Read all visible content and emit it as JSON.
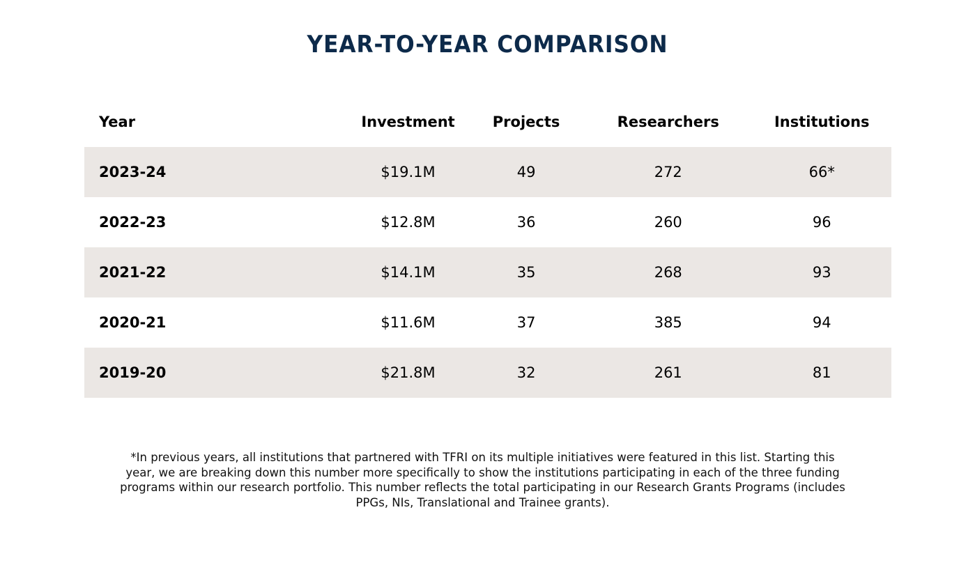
{
  "title": "YEAR-TO-YEAR COMPARISON",
  "table": {
    "headers": [
      "Year",
      "Investment",
      "Projects",
      "Researchers",
      "Institutions"
    ],
    "rows": [
      {
        "year": "2023-24",
        "investment": "$19.1M",
        "projects": "49",
        "researchers": "272",
        "institutions": "66*"
      },
      {
        "year": "2022-23",
        "investment": "$12.8M",
        "projects": "36",
        "researchers": "260",
        "institutions": "96"
      },
      {
        "year": "2021-22",
        "investment": "$14.1M",
        "projects": "35",
        "researchers": "268",
        "institutions": "93"
      },
      {
        "year": "2020-21",
        "investment": "$11.6M",
        "projects": "37",
        "researchers": "385",
        "institutions": "94"
      },
      {
        "year": "2019-20",
        "investment": "$21.8M",
        "projects": "32",
        "researchers": "261",
        "institutions": "81"
      }
    ]
  },
  "footnote": "*In previous years, all institutions that partnered with TFRI on its multiple initiatives were featured in this list. Starting this year, we are breaking down this number more specifically to show the institutions participating in each of the three funding programs within our research portfolio. This number reflects the total participating in our Research Grants Programs (includes PPGs, NIs, Translational and Trainee grants).",
  "colors": {
    "title": "#0d2a4a",
    "row_shade": "#ebe7e4",
    "text": "#000000"
  }
}
